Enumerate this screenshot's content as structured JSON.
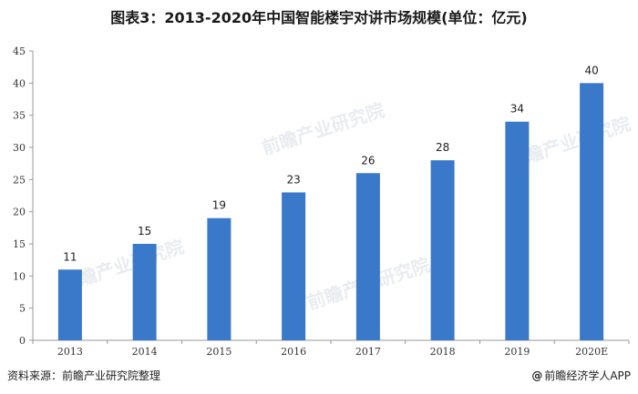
{
  "title": "图表3：2013-2020年中国智能楼宇对讲市场规模(单位：亿元)",
  "source": "资料来源：前瞻产业研究院整理",
  "brand": {
    "symbol": "@",
    "text": "前瞻经济学人APP"
  },
  "watermark": "前瞻产业研究院",
  "colors": {
    "bar": "#3a78c9",
    "axis": "#999999",
    "text": "#222222"
  },
  "chart_data": {
    "type": "bar",
    "title": "图表3：2013-2020年中国智能楼宇对讲市场规模(单位：亿元)",
    "categories": [
      "2013",
      "2014",
      "2015",
      "2016",
      "2017",
      "2018",
      "2019",
      "2020E"
    ],
    "values": [
      11,
      15,
      19,
      23,
      26,
      28,
      34,
      40
    ],
    "data_labels": [
      "11",
      "15",
      "19",
      "23",
      "26",
      "28",
      "34",
      "40"
    ],
    "yticks": [
      0,
      5,
      10,
      15,
      20,
      25,
      30,
      35,
      40,
      45
    ],
    "ylim": [
      0,
      45
    ],
    "grid": false,
    "legend": "none"
  }
}
